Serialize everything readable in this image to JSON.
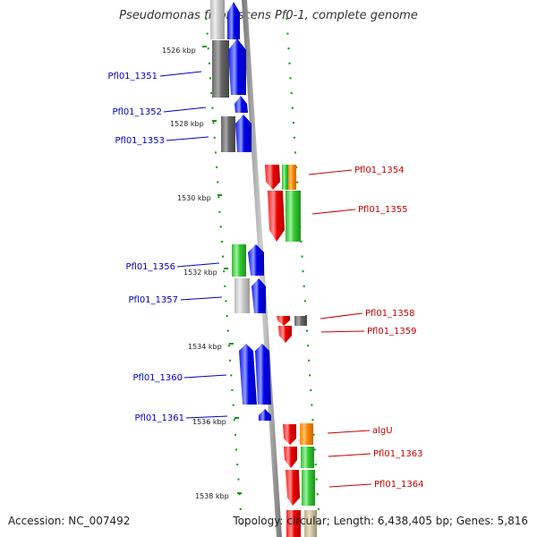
{
  "title": "Pseudomonas fluorescens Pf0-1, complete genome",
  "footer": {
    "accession": "Accession: NC_007492",
    "topology": "Topology: circular; Length: 6,438,405 bp; Genes: 5,816"
  },
  "ticks": [
    "1526 kbp",
    "1528 kbp",
    "1530 kbp",
    "1532 kbp",
    "1534 kbp",
    "1536 kbp",
    "1538 kbp"
  ],
  "left_labels": [
    "Pfl01_1351",
    "Pfl01_1352",
    "Pfl01_1353",
    "Pfl01_1356",
    "Pfl01_1357",
    "Pfl01_1360",
    "Pfl01_1361"
  ],
  "right_labels": [
    "Pfl01_1354",
    "Pfl01_1355",
    "Pfl01_1358",
    "Pfl01_1359",
    "algU",
    "Pfl01_1363",
    "Pfl01_1364"
  ],
  "colors": {
    "forward_label": "#0000c8",
    "reverse_label": "#c80000",
    "forward_gene": "#0000ee",
    "reverse_gene": "#ee0000",
    "cog_green": "#33cc33",
    "cog_grey": "#777777",
    "cog_orange": "#ff8800",
    "backbone": "#999999",
    "tick_green": "#009900"
  }
}
